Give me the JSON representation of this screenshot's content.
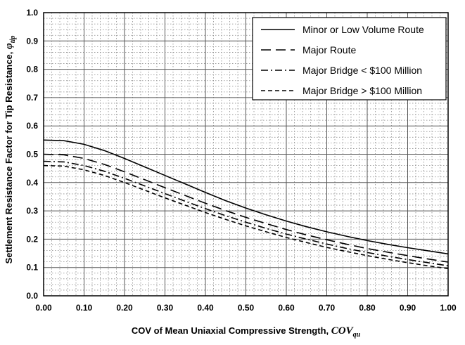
{
  "chart_data": {
    "type": "line",
    "xlabel_prefix": "COV of Mean Uniaxial Compressive Strength, ",
    "xlabel_symbol": "COV",
    "xlabel_subscript": "qu",
    "ylabel_prefix": "Settlement Resistance Factor for Tip Resistance, ",
    "ylabel_symbol": "φ",
    "ylabel_subscript": "tip",
    "xlim": [
      0,
      1
    ],
    "ylim": [
      0,
      1
    ],
    "x_ticks": [
      "0.00",
      "0.10",
      "0.20",
      "0.30",
      "0.40",
      "0.50",
      "0.60",
      "0.70",
      "0.80",
      "0.90",
      "1.00"
    ],
    "y_ticks": [
      "0.0",
      "0.1",
      "0.2",
      "0.3",
      "0.4",
      "0.5",
      "0.6",
      "0.7",
      "0.8",
      "0.9",
      "1.0"
    ],
    "grid": true,
    "legend_position": "top-right",
    "x": [
      0,
      0.05,
      0.1,
      0.15,
      0.2,
      0.25,
      0.3,
      0.35,
      0.4,
      0.45,
      0.5,
      0.55,
      0.6,
      0.65,
      0.7,
      0.75,
      0.8,
      0.85,
      0.9,
      0.95,
      1.0
    ],
    "series": [
      {
        "name": "Minor or Low Volume Route",
        "style": "solid",
        "values": [
          0.55,
          0.548,
          0.535,
          0.513,
          0.485,
          0.455,
          0.425,
          0.395,
          0.365,
          0.336,
          0.31,
          0.286,
          0.264,
          0.244,
          0.226,
          0.21,
          0.195,
          0.182,
          0.17,
          0.159,
          0.148
        ]
      },
      {
        "name": "Major Route",
        "style": "longdash",
        "values": [
          0.5,
          0.498,
          0.485,
          0.464,
          0.438,
          0.41,
          0.382,
          0.354,
          0.327,
          0.301,
          0.277,
          0.255,
          0.234,
          0.215,
          0.198,
          0.182,
          0.167,
          0.154,
          0.142,
          0.13,
          0.119
        ]
      },
      {
        "name": "Major Bridge < $100 Million",
        "style": "dashdot",
        "values": [
          0.475,
          0.473,
          0.46,
          0.44,
          0.415,
          0.388,
          0.361,
          0.334,
          0.308,
          0.283,
          0.26,
          0.238,
          0.218,
          0.2,
          0.183,
          0.167,
          0.153,
          0.14,
          0.128,
          0.117,
          0.106
        ]
      },
      {
        "name": "Major Bridge > $100 Million",
        "style": "shortdash",
        "values": [
          0.46,
          0.458,
          0.445,
          0.425,
          0.4,
          0.373,
          0.346,
          0.32,
          0.294,
          0.27,
          0.247,
          0.226,
          0.206,
          0.188,
          0.171,
          0.156,
          0.142,
          0.129,
          0.117,
          0.106,
          0.096
        ]
      }
    ]
  }
}
